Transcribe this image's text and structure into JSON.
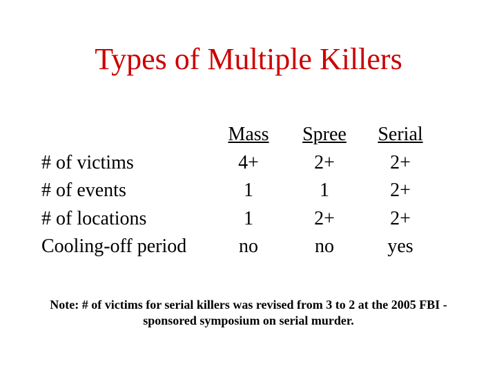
{
  "title": "Types of Multiple Killers",
  "title_color": "#cc0000",
  "columns": [
    "Mass",
    "Spree",
    "Serial"
  ],
  "rows": [
    {
      "label": "# of victims",
      "values": [
        "4+",
        "2+",
        "2+"
      ]
    },
    {
      "label": "# of events",
      "values": [
        "1",
        "1",
        "2+"
      ]
    },
    {
      "label": "# of locations",
      "values": [
        "1",
        "2+",
        "2+"
      ]
    },
    {
      "label": "Cooling-off period",
      "values": [
        "no",
        "no",
        "yes"
      ]
    }
  ],
  "note": "Note: # of victims for serial killers was revised from 3 to 2 at the 2005 FBI -sponsored symposium on serial murder.",
  "style": {
    "background_color": "#ffffff",
    "text_color": "#000000",
    "font_family": "Times New Roman",
    "title_fontsize": 44,
    "body_fontsize": 28,
    "note_fontsize": 18,
    "note_fontweight": "bold",
    "header_underline": true
  }
}
